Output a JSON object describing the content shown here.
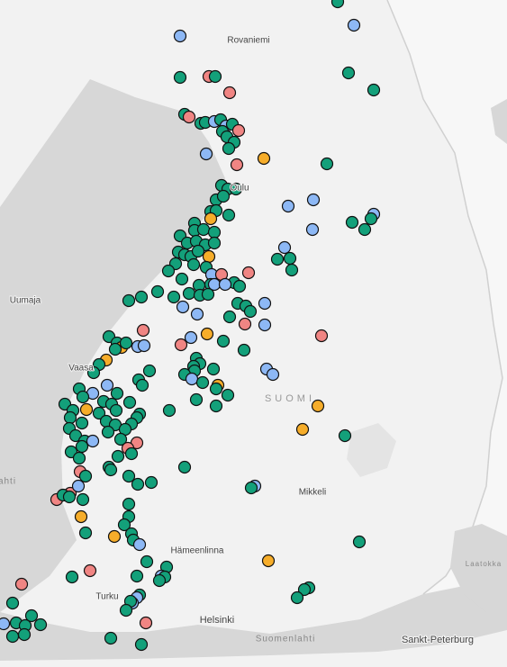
{
  "labels": {
    "rovaniemi": "Rovaniemi",
    "oulu": "Oulu",
    "uumaja": "Uumaja",
    "vaasa": "Vaasa",
    "suomi": "SUOMI",
    "mikkeli": "Mikkeli",
    "hameenlinna": "Hämeenlinna",
    "turku": "Turku",
    "helsinki": "Helsinki",
    "suomenlahti": "Suomenlahti",
    "sankt_peterburg": "Sankt-Peterburg",
    "laatokka": "Laatokka",
    "bothnia_fragment": "ahti"
  }
}
